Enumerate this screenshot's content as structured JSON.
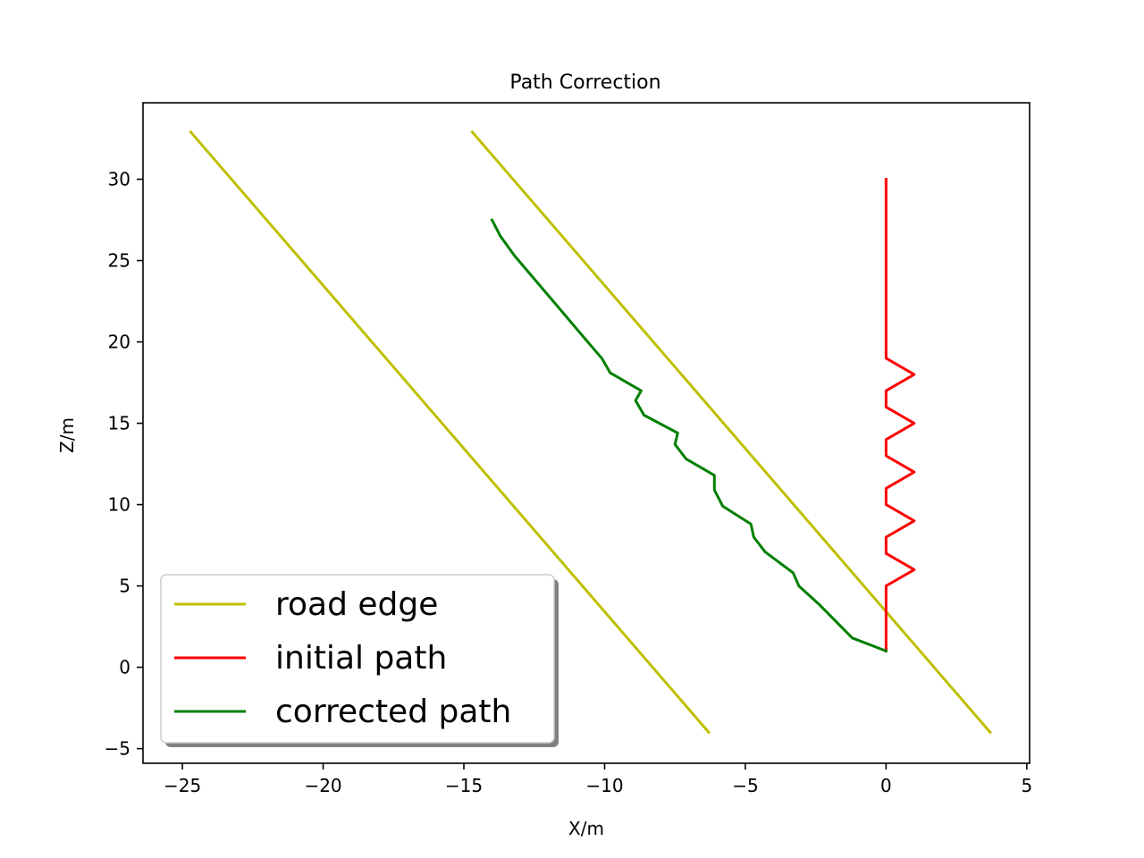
{
  "chart_data": {
    "type": "line",
    "title": "Path Correction",
    "xlabel": "X/m",
    "ylabel": "Z/m",
    "xlim": [
      -26.4,
      5.1
    ],
    "ylim": [
      -5.9,
      34.7
    ],
    "x_ticks": [
      -25,
      -20,
      -15,
      -10,
      -5,
      0,
      5
    ],
    "y_ticks": [
      -5,
      0,
      5,
      10,
      15,
      20,
      25,
      30
    ],
    "grid": false,
    "legend_position": "lower-left",
    "series": [
      {
        "name": "road edge",
        "color": "#bfbf00",
        "segments": [
          [
            [
              -24.7,
              32.9
            ],
            [
              -6.3,
              -4.0
            ]
          ],
          [
            [
              -14.7,
              32.9
            ],
            [
              3.7,
              -4.0
            ]
          ]
        ]
      },
      {
        "name": "initial path",
        "color": "#ff0000",
        "segments": [
          [
            [
              0,
              1
            ],
            [
              0,
              5
            ],
            [
              1,
              6
            ],
            [
              0,
              7
            ],
            [
              0,
              8
            ],
            [
              1,
              9
            ],
            [
              0,
              10
            ],
            [
              0,
              11
            ],
            [
              1,
              12
            ],
            [
              0,
              13
            ],
            [
              0,
              14
            ],
            [
              1,
              15
            ],
            [
              0,
              16
            ],
            [
              0,
              17
            ],
            [
              1,
              18
            ],
            [
              0,
              19
            ],
            [
              0,
              30
            ]
          ]
        ]
      },
      {
        "name": "corrected path",
        "color": "#008000",
        "segments": [
          [
            [
              0,
              1
            ],
            [
              -1.2,
              1.8
            ],
            [
              -2.4,
              3.9
            ],
            [
              -3.1,
              5.0
            ],
            [
              -3.3,
              5.8
            ],
            [
              -4.3,
              7.1
            ],
            [
              -4.7,
              8.0
            ],
            [
              -4.8,
              8.8
            ],
            [
              -5.8,
              9.9
            ],
            [
              -6.1,
              10.9
            ],
            [
              -6.1,
              11.8
            ],
            [
              -7.1,
              12.8
            ],
            [
              -7.5,
              13.7
            ],
            [
              -7.4,
              14.4
            ],
            [
              -8.6,
              15.5
            ],
            [
              -8.9,
              16.4
            ],
            [
              -8.7,
              17.0
            ],
            [
              -9.8,
              18.1
            ],
            [
              -10.1,
              19.0
            ],
            [
              -10.5,
              19.8
            ],
            [
              -13.2,
              25.3
            ],
            [
              -13.7,
              26.5
            ],
            [
              -14,
              27.5
            ]
          ]
        ]
      }
    ]
  }
}
